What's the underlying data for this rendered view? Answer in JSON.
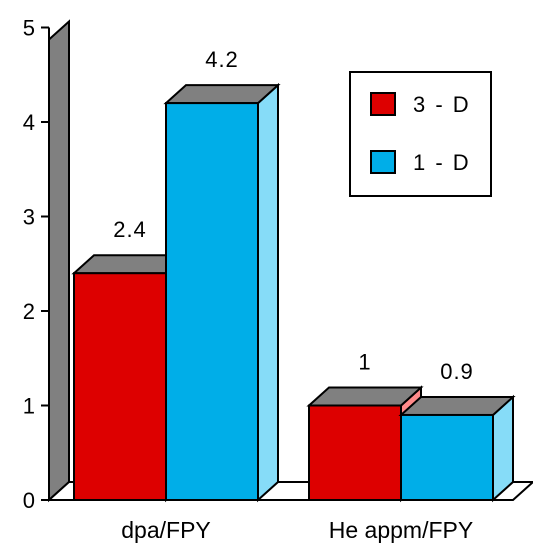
{
  "chart_data": {
    "type": "bar",
    "categories": [
      "dpa/FPY",
      "He appm/FPY"
    ],
    "series": [
      {
        "name": "3-D",
        "values": [
          2.4,
          1
        ]
      },
      {
        "name": "1-D",
        "values": [
          4.2,
          0.9
        ]
      }
    ],
    "data_labels": [
      {
        "category": "dpa/FPY",
        "series": "3-D",
        "text": "2.4"
      },
      {
        "category": "dpa/FPY",
        "series": "1-D",
        "text": "4.2"
      },
      {
        "category": "He appm/FPY",
        "series": "3-D",
        "text": "1"
      },
      {
        "category": "He appm/FPY",
        "series": "1-D",
        "text": "0.9"
      }
    ],
    "legend": {
      "placement": "top-right",
      "items": [
        {
          "label": "3 - D",
          "color": "#dd0000"
        },
        {
          "label": "1 - D",
          "color": "#00aee8"
        }
      ]
    },
    "y_ticks": [
      "0",
      "1",
      "2",
      "3",
      "4",
      "5"
    ],
    "ylim": [
      0,
      5
    ],
    "style": "3d-bars",
    "grid": false,
    "colors": {
      "series_3d_front": "#dd0000",
      "series_3d_side": "#ff8a8a",
      "series_1d_front": "#00aee8",
      "series_1d_side": "#86dcf8",
      "bar_top": "#808080",
      "back_wall": "#808080"
    }
  }
}
